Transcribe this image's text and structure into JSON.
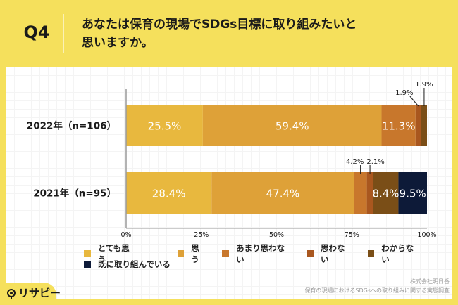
{
  "header": {
    "question_number": "Q4",
    "title_line1": "あなたは保育の現場でSDGs目標に取り組みたいと",
    "title_line2": "思いますか。"
  },
  "chart_data": {
    "type": "bar",
    "orientation": "horizontal",
    "stacked": true,
    "title": "あなたは保育の現場でSDGs目標に取り組みたいと思いますか。",
    "xlabel": "",
    "ylabel": "",
    "xlim": [
      0,
      100
    ],
    "x_ticks": [
      "0%",
      "25%",
      "50%",
      "75%",
      "100%"
    ],
    "categories": [
      "2022年（n=106）",
      "2021年（n=95）"
    ],
    "series": [
      {
        "name": "とても思う",
        "color": "#e8b83e",
        "values": [
          25.5,
          28.4
        ]
      },
      {
        "name": "思う",
        "color": "#dea138",
        "values": [
          59.4,
          47.4
        ]
      },
      {
        "name": "あまり思わない",
        "color": "#c8772c",
        "values": [
          11.3,
          4.2
        ]
      },
      {
        "name": "思わない",
        "color": "#a9571f",
        "values": [
          1.9,
          2.1
        ]
      },
      {
        "name": "わからない",
        "color": "#7a4e17",
        "values": [
          1.9,
          8.4
        ]
      },
      {
        "name": "既に取り組んでいる",
        "color": "#0d1a38",
        "values": [
          0,
          9.5
        ]
      }
    ],
    "data_labels": [
      [
        "25.5%",
        "59.4%",
        "11.3%",
        "1.9%",
        "1.9%",
        ""
      ],
      [
        "28.4%",
        "47.4%",
        "4.2%",
        "2.1%",
        "8.4%",
        "9.5%"
      ]
    ],
    "legend_position": "bottom",
    "grid": false
  },
  "footer": {
    "company": "株式会社明日香",
    "survey": "保育の現場におけるSDGsへの取り組みに関する実態調査",
    "logo_text": "リサピー"
  }
}
